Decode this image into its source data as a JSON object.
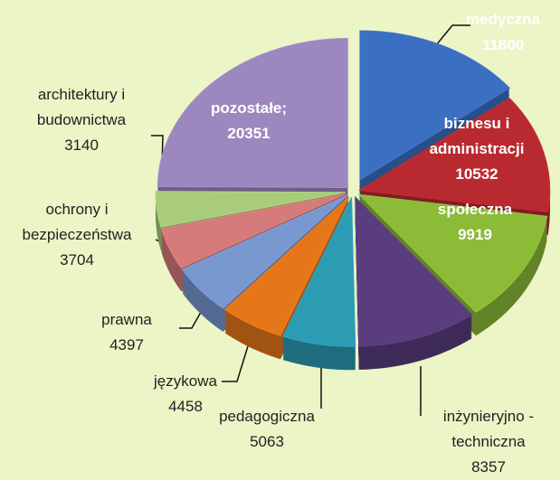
{
  "chart_data": {
    "type": "pie3d",
    "categories": [
      "medyczna",
      "biznesu i administracji",
      "społeczna",
      "inżynieryjno - techniczna",
      "pedagogiczna",
      "językowa",
      "prawna",
      "ochrony i bezpieczeństwa",
      "architektury i budownictwa",
      "pozostałe;"
    ],
    "values": [
      11800,
      10532,
      9919,
      8357,
      5063,
      4458,
      4397,
      3704,
      3140,
      20351
    ],
    "colors": [
      "#3b6fc2",
      "#b92a30",
      "#8cbb38",
      "#5a3d7e",
      "#2b9cb4",
      "#e6761a",
      "#7a98d0",
      "#d67b7b",
      "#a9cc7c",
      "#9d87bf"
    ]
  }
}
